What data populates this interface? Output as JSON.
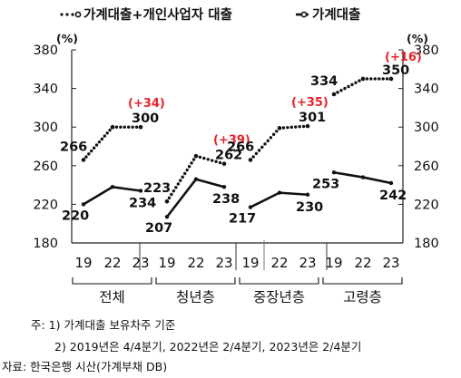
{
  "chart_data": {
    "type": "line",
    "legend": {
      "position": "top",
      "entries": [
        "가계대출+개인사업자 대출",
        "가계대출"
      ]
    },
    "y_unit_left": "(%)",
    "y_unit_right": "(%)",
    "ylim": [
      180,
      380
    ],
    "yticks": [
      180,
      220,
      260,
      300,
      340,
      380
    ],
    "groups": [
      {
        "name": "전체",
        "x": [
          "19",
          "22",
          "23"
        ],
        "dotted": [
          266,
          300,
          300
        ],
        "solid": [
          220,
          238,
          234
        ],
        "dotted_labels": [
          "266",
          "",
          "300"
        ],
        "solid_labels": [
          "220",
          "",
          "234"
        ],
        "change": "(+34)"
      },
      {
        "name": "청년층",
        "x": [
          "19",
          "22",
          "23"
        ],
        "dotted": [
          223,
          270,
          262
        ],
        "solid": [
          207,
          246,
          238
        ],
        "dotted_labels": [
          "223",
          "",
          "262"
        ],
        "solid_labels": [
          "207",
          "",
          "238"
        ],
        "change": "(+39)"
      },
      {
        "name": "중장년층",
        "x": [
          "19",
          "22",
          "23"
        ],
        "dotted": [
          266,
          299,
          301
        ],
        "solid": [
          217,
          232,
          230
        ],
        "dotted_labels": [
          "266",
          "",
          "301"
        ],
        "solid_labels": [
          "217",
          "",
          "230"
        ],
        "change": "(+35)"
      },
      {
        "name": "고령층",
        "x": [
          "19",
          "22",
          "23"
        ],
        "dotted": [
          334,
          350,
          350
        ],
        "solid": [
          253,
          248,
          242
        ],
        "dotted_labels": [
          "334",
          "",
          "350"
        ],
        "solid_labels": [
          "253",
          "",
          "242"
        ],
        "change": "(+16)"
      }
    ],
    "colors": {
      "line": "#111111",
      "change": "#e8232a",
      "axis": "#222222"
    }
  },
  "notes": {
    "note1": "주: 1) 가계대출 보유차주 기준",
    "note2": "2) 2019년은 4/4분기, 2022년은 2/4분기, 2023년은 2/4분기",
    "source": "자료: 한국은행 시산(가계부채 DB)"
  }
}
